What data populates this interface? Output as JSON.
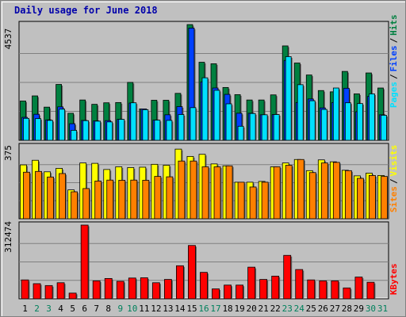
{
  "title": "Daily usage for June 2018",
  "colors": {
    "background": "#c0c0c0",
    "hits": "#008040",
    "files": "#0040ff",
    "pages": "#00e0ff",
    "visits": "#ffff00",
    "sites": "#ff8000",
    "kbytes": "#ff0000",
    "weekend_label": "#00805c",
    "weekday_label": "#000000"
  },
  "chart_data": [
    {
      "type": "bar",
      "title": "",
      "ymax_label": "4537",
      "ylim": [
        0,
        4537
      ],
      "grid": true,
      "legend": [
        "Pages",
        "Files",
        "Hits"
      ],
      "categories": [
        "1",
        "2",
        "3",
        "4",
        "5",
        "6",
        "7",
        "8",
        "9",
        "10",
        "11",
        "12",
        "13",
        "14",
        "15",
        "16",
        "17",
        "18",
        "19",
        "20",
        "21",
        "22",
        "23",
        "24",
        "25",
        "26",
        "27",
        "28",
        "29",
        "30",
        "31"
      ],
      "weekend_days": [
        "2",
        "3",
        "9",
        "10",
        "16",
        "17",
        "23",
        "24",
        "30",
        "31"
      ],
      "series": [
        {
          "name": "Hits",
          "values": [
            1540,
            1740,
            1300,
            2190,
            1060,
            1580,
            1410,
            1470,
            1480,
            2270,
            1230,
            1570,
            1570,
            1840,
            4540,
            3060,
            3000,
            2070,
            1790,
            1580,
            1580,
            1780,
            3700,
            3030,
            2560,
            1950,
            1900,
            2700,
            1820,
            2640,
            2050
          ]
        },
        {
          "name": "Files",
          "values": [
            900,
            1020,
            800,
            1310,
            650,
            780,
            760,
            770,
            820,
            1460,
            1230,
            790,
            1000,
            1320,
            4400,
            2290,
            2050,
            1800,
            1060,
            1060,
            1000,
            1010,
            3130,
            1480,
            1620,
            1270,
            1480,
            2040,
            1120,
            1720,
            1000
          ]
        },
        {
          "name": "Pages",
          "values": [
            860,
            850,
            780,
            1220,
            390,
            770,
            750,
            720,
            820,
            1470,
            1200,
            790,
            780,
            1010,
            1280,
            2450,
            1960,
            1430,
            550,
            1050,
            1000,
            1010,
            3280,
            2180,
            1550,
            1210,
            2050,
            1470,
            1440,
            1820,
            980
          ]
        }
      ]
    },
    {
      "type": "bar",
      "title": "",
      "ymax_label": "375",
      "ylim": [
        0,
        375
      ],
      "grid": true,
      "legend": [
        "Sites",
        "Visits"
      ],
      "categories": [
        "1",
        "2",
        "3",
        "4",
        "5",
        "6",
        "7",
        "8",
        "9",
        "10",
        "11",
        "12",
        "13",
        "14",
        "15",
        "16",
        "17",
        "18",
        "19",
        "20",
        "21",
        "22",
        "23",
        "24",
        "25",
        "26",
        "27",
        "28",
        "29",
        "30",
        "31"
      ],
      "series": [
        {
          "name": "Visits",
          "values": [
            280,
            304,
            244,
            262,
            150,
            290,
            288,
            256,
            270,
            266,
            268,
            283,
            278,
            362,
            324,
            335,
            285,
            275,
            190,
            190,
            194,
            270,
            290,
            308,
            250,
            306,
            296,
            252,
            223,
            237,
            225
          ]
        },
        {
          "name": "Sites",
          "values": [
            242,
            246,
            217,
            235,
            140,
            157,
            196,
            201,
            200,
            201,
            200,
            220,
            218,
            300,
            300,
            270,
            270,
            275,
            190,
            165,
            190,
            270,
            278,
            308,
            240,
            290,
            293,
            250,
            210,
            225,
            220
          ]
        }
      ]
    },
    {
      "type": "bar",
      "title": "",
      "ymax_label": "312474",
      "ylim": [
        0,
        312474
      ],
      "grid": true,
      "legend": [
        "KBytes"
      ],
      "categories": [
        "1",
        "2",
        "3",
        "4",
        "5",
        "6",
        "7",
        "8",
        "9",
        "10",
        "11",
        "12",
        "13",
        "14",
        "15",
        "16",
        "17",
        "18",
        "19",
        "20",
        "21",
        "22",
        "23",
        "24",
        "25",
        "26",
        "27",
        "28",
        "29",
        "30",
        "31"
      ],
      "series": [
        {
          "name": "KBytes",
          "values": [
            80000,
            64000,
            56000,
            68000,
            24000,
            320000,
            76000,
            86000,
            74000,
            88000,
            89000,
            68000,
            82000,
            140000,
            226000,
            112000,
            42000,
            58000,
            58000,
            134000,
            82000,
            96000,
            184000,
            124000,
            80000,
            76000,
            76000,
            46000,
            92000,
            70000,
            0
          ]
        }
      ]
    }
  ]
}
